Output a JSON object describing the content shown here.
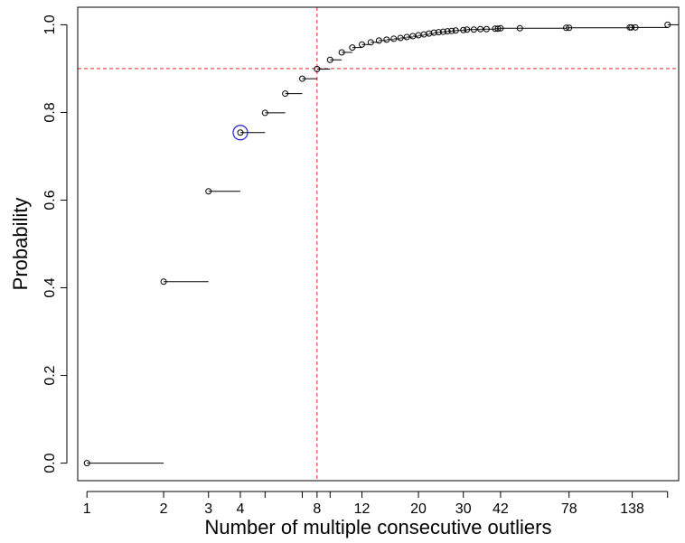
{
  "chart_data": {
    "type": "scatter",
    "subtype": "step-ecdf",
    "xlabel": "Number of multiple consecutive outliers",
    "ylabel": "Probability",
    "x_scale": "log",
    "xlim": [
      0.92,
      210
    ],
    "ylim": [
      0,
      1
    ],
    "x_ticks": [
      1,
      2,
      3,
      4,
      8,
      12,
      20,
      30,
      42,
      78,
      138
    ],
    "x_tick_labels": [
      "1",
      "2",
      "3",
      "4",
      "8",
      "12",
      "20",
      "30",
      "42",
      "78",
      "138"
    ],
    "x_minor_ticks": [
      5,
      7,
      9,
      190
    ],
    "y_ticks": [
      0.0,
      0.2,
      0.4,
      0.6,
      0.8,
      1.0
    ],
    "y_tick_labels": [
      "0.0",
      "0.2",
      "0.4",
      "0.6",
      "0.8",
      "1.0"
    ],
    "points": [
      {
        "x": 1,
        "y": 0.0
      },
      {
        "x": 2,
        "y": 0.414
      },
      {
        "x": 3,
        "y": 0.62
      },
      {
        "x": 4,
        "y": 0.754
      },
      {
        "x": 5,
        "y": 0.799
      },
      {
        "x": 6,
        "y": 0.843
      },
      {
        "x": 7,
        "y": 0.877
      },
      {
        "x": 8,
        "y": 0.899
      },
      {
        "x": 9,
        "y": 0.92
      },
      {
        "x": 10,
        "y": 0.937
      },
      {
        "x": 11,
        "y": 0.948
      },
      {
        "x": 12,
        "y": 0.955
      },
      {
        "x": 13,
        "y": 0.96
      },
      {
        "x": 14,
        "y": 0.964
      },
      {
        "x": 15,
        "y": 0.966
      },
      {
        "x": 16,
        "y": 0.968
      },
      {
        "x": 17,
        "y": 0.97
      },
      {
        "x": 18,
        "y": 0.972
      },
      {
        "x": 19,
        "y": 0.974
      },
      {
        "x": 20,
        "y": 0.976
      },
      {
        "x": 21,
        "y": 0.978
      },
      {
        "x": 22,
        "y": 0.98
      },
      {
        "x": 23,
        "y": 0.982
      },
      {
        "x": 24,
        "y": 0.983
      },
      {
        "x": 25,
        "y": 0.984
      },
      {
        "x": 26,
        "y": 0.985
      },
      {
        "x": 27,
        "y": 0.986
      },
      {
        "x": 28,
        "y": 0.987
      },
      {
        "x": 30,
        "y": 0.988
      },
      {
        "x": 31,
        "y": 0.989
      },
      {
        "x": 33,
        "y": 0.989
      },
      {
        "x": 35,
        "y": 0.99
      },
      {
        "x": 37,
        "y": 0.99
      },
      {
        "x": 40,
        "y": 0.991
      },
      {
        "x": 41,
        "y": 0.991
      },
      {
        "x": 42,
        "y": 0.992
      },
      {
        "x": 50,
        "y": 0.992
      },
      {
        "x": 76,
        "y": 0.993
      },
      {
        "x": 78,
        "y": 0.993
      },
      {
        "x": 135,
        "y": 0.994
      },
      {
        "x": 137,
        "y": 0.994
      },
      {
        "x": 142,
        "y": 0.994
      },
      {
        "x": 190,
        "y": 1.0
      }
    ],
    "step_end_x": 210,
    "reference_lines": [
      {
        "orientation": "vertical",
        "x": 8,
        "color": "#e8282a",
        "style": "dashed"
      },
      {
        "orientation": "horizontal",
        "y": 0.9,
        "color": "#e8282a",
        "style": "dashed"
      }
    ],
    "highlight": {
      "x": 4,
      "y": 0.754,
      "color": "#1f1fd6"
    },
    "point_color": "#000000",
    "grid": false,
    "legend": "none"
  }
}
